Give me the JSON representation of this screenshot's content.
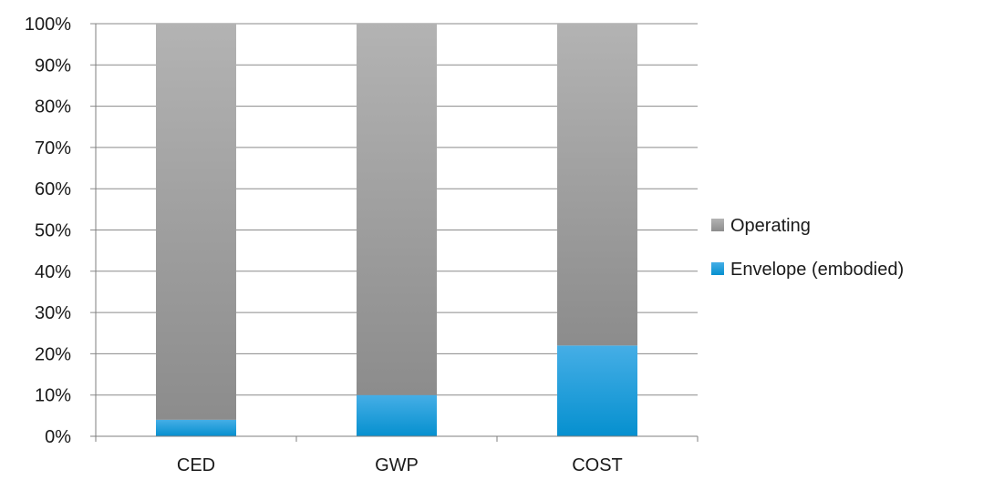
{
  "chart_data": {
    "type": "bar",
    "stacked": true,
    "normalized": true,
    "categories": [
      "CED",
      "GWP",
      "COST"
    ],
    "series": [
      {
        "name": "Envelope (embodied)",
        "values": [
          4,
          10,
          22
        ],
        "color": "#0a9ad8"
      },
      {
        "name": "Operating",
        "values": [
          96,
          90,
          78
        ],
        "color": "#9a9a9a"
      }
    ],
    "ylim": [
      0,
      100
    ],
    "yticks": [
      "0%",
      "10%",
      "20%",
      "30%",
      "40%",
      "50%",
      "60%",
      "70%",
      "80%",
      "90%",
      "100%"
    ],
    "grid": true,
    "legend": {
      "position": "right",
      "entries": [
        "Operating",
        "Envelope (embodied)"
      ]
    }
  }
}
